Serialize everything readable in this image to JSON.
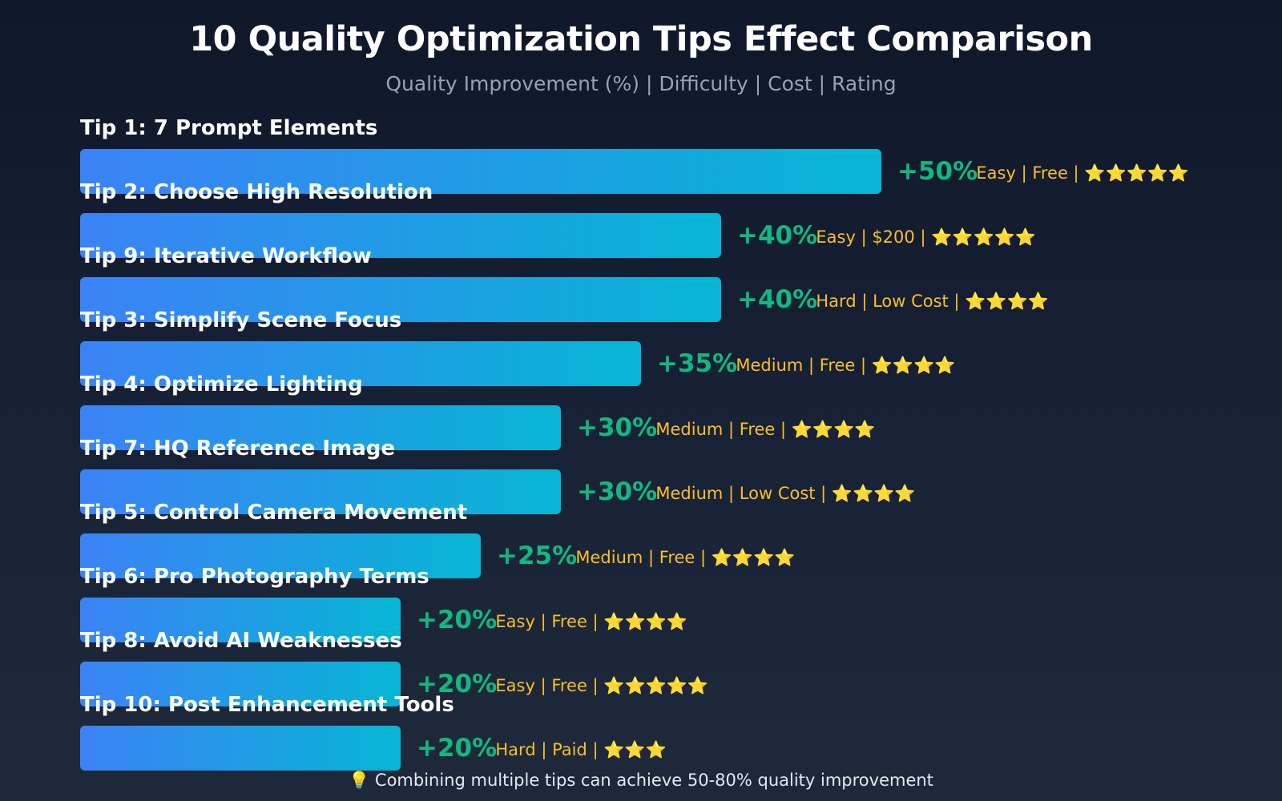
{
  "chart_data": {
    "type": "bar",
    "orientation": "horizontal",
    "title": "10 Quality Optimization Tips Effect Comparison",
    "subtitle": "Quality Improvement (%) | Difficulty | Cost | Rating",
    "xlim": [
      0,
      50
    ],
    "categories": [
      "Tip 1: 7 Prompt Elements",
      "Tip 2: Choose High Resolution",
      "Tip 9: Iterative Workflow",
      "Tip 3: Simplify Scene Focus",
      "Tip 4: Optimize Lighting",
      "Tip 7: HQ Reference Image",
      "Tip 5: Control Camera Movement",
      "Tip 6: Pro Photography Terms",
      "Tip 8: Avoid AI Weaknesses",
      "Tip 10: Post Enhancement Tools"
    ],
    "values": [
      50,
      40,
      40,
      35,
      30,
      30,
      25,
      20,
      20,
      20
    ],
    "value_labels": [
      "+50%",
      "+40%",
      "+40%",
      "+35%",
      "+30%",
      "+30%",
      "+25%",
      "+20%",
      "+20%",
      "+20%"
    ],
    "annotations": [
      "Easy | Free | ⭐⭐⭐⭐⭐",
      "Easy | $200 | ⭐⭐⭐⭐⭐",
      "Hard | Low Cost | ⭐⭐⭐⭐",
      "Medium | Free | ⭐⭐⭐⭐",
      "Medium | Free | ⭐⭐⭐⭐",
      "Medium | Low Cost | ⭐⭐⭐⭐",
      "Medium | Free | ⭐⭐⭐⭐",
      "Easy | Free | ⭐⭐⭐⭐",
      "Easy | Free | ⭐⭐⭐⭐⭐",
      "Hard | Paid | ⭐⭐⭐"
    ],
    "ratings": [
      5,
      5,
      4,
      4,
      4,
      4,
      4,
      4,
      5,
      3
    ],
    "colors": {
      "bar_start": "#3b82f6",
      "bar_end": "#06b6d4",
      "value_label": "#10b981",
      "annotation": "#fbbf24",
      "star": "#fcd34d",
      "category_label": "#ffffff"
    },
    "footer": "💡 Combining multiple tips can achieve 50-80% quality improvement"
  }
}
